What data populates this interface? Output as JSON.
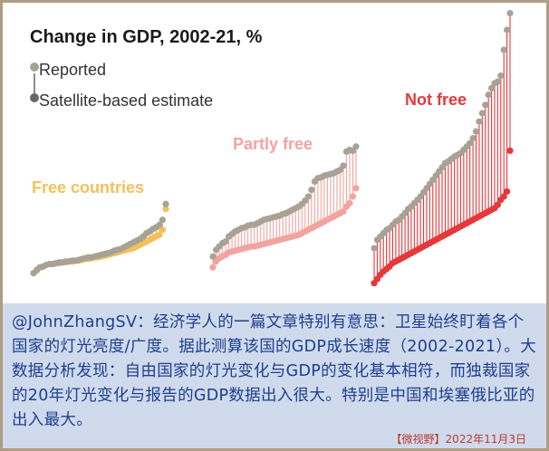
{
  "title": "Change in GDP, 2002-21, %",
  "legend": [
    {
      "label": "Reported",
      "color": "#a8a296"
    },
    {
      "label": "Satellite-based estimate",
      "color": "#6a665f"
    }
  ],
  "caption_text": "@JohnZhangSV：经济学人的一篇文章特别有意思：卫星始终盯着各个国家的灯光亮度/广度。据此测算该国的GDP成长速度（2002-2021）。大数据分析发现：自由国家的灯光变化与GDP的变化基本相符，而独裁国家的20年灯光变化与报告的GDP数据出入很大。特别是中国和埃塞俄比亚的出入最大。",
  "footer_text": "【微视野】2022年11月3日",
  "colors": {
    "reported": "#a8a296",
    "free": "#f3c05c",
    "partly_free": "#f2a3a0",
    "not_free": "#e5383a",
    "caption_bg": "#cfdaed",
    "caption_text": "#1f3f8f",
    "frame": "#b7a690"
  },
  "chart_data": {
    "type": "scatter",
    "title": "Change in GDP, 2002-21, %",
    "xlabel": "",
    "ylabel": "",
    "groups": [
      {
        "name": "Free countries",
        "color": "#f3c05c",
        "reported": [
          8,
          12,
          15,
          16,
          18,
          19,
          19,
          20,
          21,
          21,
          22,
          22,
          23,
          23,
          24,
          25,
          26,
          27,
          27,
          28,
          29,
          30,
          31,
          32,
          33,
          35,
          36,
          37,
          39,
          41,
          43,
          45,
          47,
          49,
          52,
          56,
          58,
          61,
          63,
          66,
          72,
          91
        ],
        "estimate": [
          8,
          11,
          15,
          16,
          18,
          19,
          19,
          20,
          20,
          21,
          21,
          22,
          22,
          23,
          23,
          24,
          25,
          25,
          26,
          27,
          27,
          28,
          29,
          30,
          31,
          32,
          33,
          34,
          35,
          36,
          37,
          38,
          40,
          42,
          44,
          46,
          48,
          50,
          52,
          54,
          60,
          85
        ]
      },
      {
        "name": "Partly free",
        "color": "#f2a3a0",
        "reported": [
          28,
          36,
          40,
          44,
          46,
          52,
          55,
          58,
          60,
          62,
          63,
          65,
          66,
          66,
          68,
          70,
          72,
          73,
          74,
          75,
          76,
          77,
          79,
          80,
          82,
          84,
          86,
          88,
          91,
          95,
          100,
          108,
          118,
          122,
          123,
          125,
          126,
          127,
          128,
          130,
          132,
          137,
          154,
          156,
          155,
          160
        ],
        "estimate": [
          15,
          22,
          26,
          28,
          30,
          33,
          34,
          35,
          36,
          37,
          38,
          39,
          40,
          40,
          41,
          42,
          43,
          44,
          45,
          46,
          47,
          48,
          49,
          50,
          51,
          52,
          53,
          54,
          56,
          58,
          60,
          62,
          64,
          66,
          68,
          70,
          72,
          74,
          76,
          78,
          80,
          82,
          88,
          92,
          100,
          110
        ]
      },
      {
        "name": "Not free",
        "color": "#e5383a",
        "reported": [
          38,
          48,
          52,
          56,
          60,
          62,
          66,
          70,
          72,
          76,
          80,
          85,
          88,
          92,
          96,
          100,
          105,
          110,
          115,
          120,
          125,
          130,
          135,
          140,
          142,
          145,
          148,
          150,
          152,
          156,
          160,
          164,
          170,
          178,
          190,
          200,
          210,
          222,
          230,
          236,
          238,
          245,
          276,
          300,
          320
        ],
        "estimate": [
          -4,
          1,
          6,
          10,
          13,
          16,
          20,
          22,
          24,
          26,
          28,
          30,
          32,
          34,
          36,
          38,
          40,
          42,
          44,
          46,
          48,
          50,
          52,
          54,
          56,
          58,
          60,
          62,
          64,
          66,
          68,
          70,
          72,
          74,
          76,
          78,
          80,
          82,
          84,
          86,
          90,
          96,
          100,
          106,
          155
        ]
      }
    ]
  }
}
